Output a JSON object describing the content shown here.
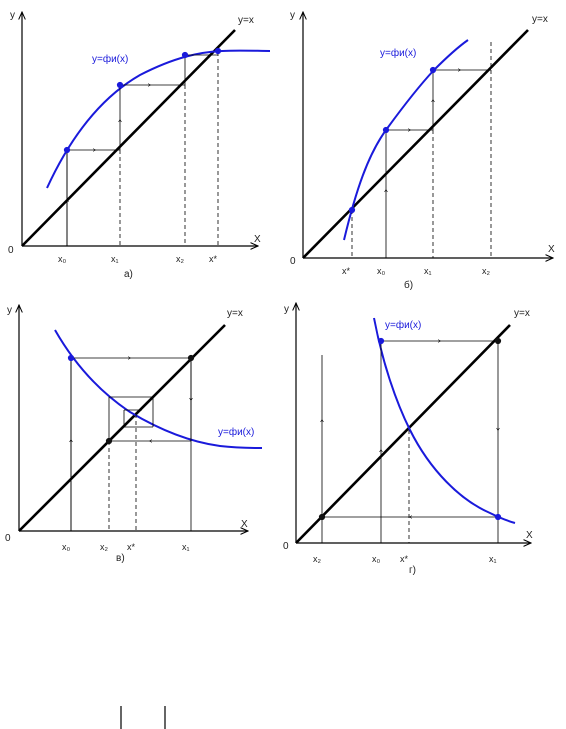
{
  "panels": [
    {
      "y_label": "у",
      "diag_label": "у=х",
      "curve_label": "у=фи(х)",
      "x_label": "Х",
      "origin_label": "0",
      "ticks": [
        "х₀",
        "х₁",
        "х₂",
        "х*"
      ],
      "caption": "а)"
    },
    {
      "y_label": "у",
      "diag_label": "у=х",
      "curve_label": "у=фи(х)",
      "x_label": "Х",
      "origin_label": "0",
      "ticks": [
        "х*",
        "х₀",
        "х₁",
        "х₂"
      ],
      "caption": "б)"
    },
    {
      "y_label": "у",
      "diag_label": "у=х",
      "curve_label": "у=фи(х)",
      "x_label": "Х",
      "origin_label": "0",
      "ticks": [
        "х₀",
        "х₂",
        "х*",
        "х₁"
      ],
      "caption": "в)"
    },
    {
      "y_label": "у",
      "diag_label": "у=х",
      "curve_label": "у=фи(х)",
      "x_label": "Х",
      "origin_label": "0",
      "ticks": [
        "х₂",
        "х₀",
        "х*",
        "х₁"
      ],
      "caption": "г)"
    }
  ]
}
